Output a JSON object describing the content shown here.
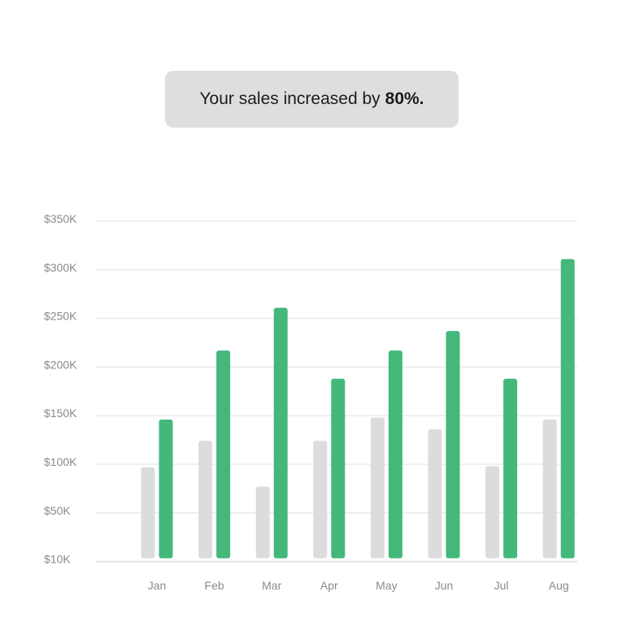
{
  "banner": {
    "text": "Your sales increased by",
    "highlight": "80%."
  },
  "colors": {
    "previous": "#dcdcdc",
    "current": "#43b87a",
    "grid": "#e0e0e0",
    "tick": "#8a8a8a",
    "banner_bg": "#dedede"
  },
  "chart_data": {
    "type": "bar",
    "categories": [
      "Jan",
      "Feb",
      "Mar",
      "Apr",
      "May",
      "Jun",
      "Jul",
      "Aug"
    ],
    "y_ticks": [
      "$350K",
      "$300K",
      "$250K",
      "$200K",
      "$150K",
      "$100K",
      "$50K",
      "$10K"
    ],
    "y_tick_values": [
      350,
      300,
      250,
      200,
      150,
      100,
      50,
      10
    ],
    "ylim": [
      10,
      350
    ],
    "units": "thousands of USD",
    "series": [
      {
        "values": [
          97,
          124,
          77,
          124,
          148,
          136,
          98,
          146
        ],
        "color": "#dcdcdc"
      },
      {
        "values": [
          146,
          217,
          261,
          188,
          217,
          237,
          188,
          311
        ],
        "color": "#43b87a"
      }
    ],
    "grid": true
  }
}
